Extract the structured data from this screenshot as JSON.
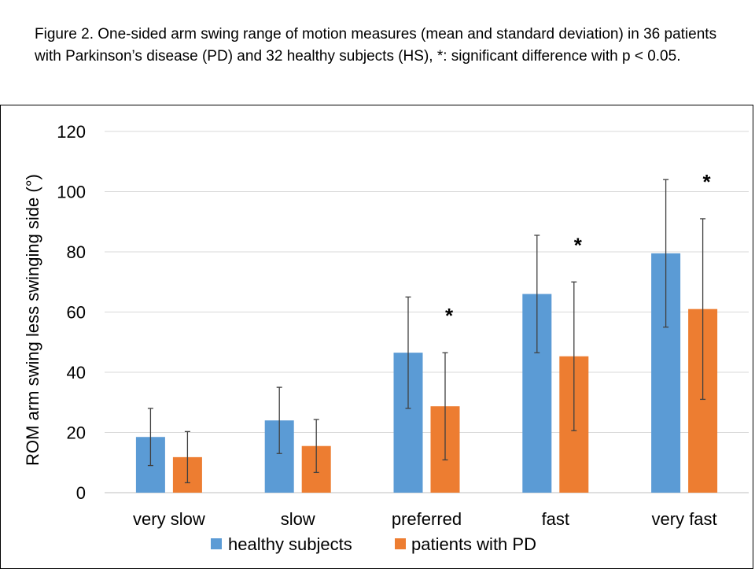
{
  "caption": "Figure 2.  One-sided arm swing range of motion measures (mean and standard deviation) in 36 patients with Parkinson’s disease (PD) and 32 healthy subjects (HS), *: significant difference with p < 0.05.",
  "chart_data": {
    "type": "bar",
    "title": "",
    "xlabel": "",
    "ylabel": "ROM arm swing less swinging side (°)",
    "ylim": [
      0,
      120
    ],
    "yticks": [
      0,
      20,
      40,
      60,
      80,
      100,
      120
    ],
    "grid": true,
    "legend_position": "bottom",
    "categories": [
      "very slow",
      "slow",
      "preferred",
      "fast",
      "very fast"
    ],
    "series": [
      {
        "name": "healthy subjects",
        "color": "#5B9BD5",
        "values": [
          18.5,
          24,
          46.5,
          66,
          79.5
        ],
        "sd": [
          9.5,
          11,
          18.5,
          19.5,
          24.5
        ]
      },
      {
        "name": "patients with PD",
        "color": "#ED7D31",
        "values": [
          11.8,
          15.5,
          28.7,
          45.3,
          61
        ],
        "sd": [
          8.5,
          8.8,
          17.8,
          24.7,
          30
        ]
      }
    ],
    "significance": {
      "marker": "*",
      "categories": [
        "preferred",
        "fast",
        "very fast"
      ]
    }
  }
}
